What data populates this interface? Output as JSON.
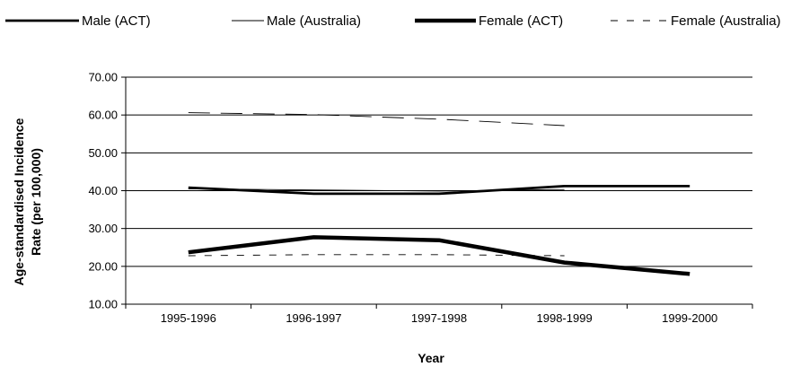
{
  "chart_data": {
    "type": "line",
    "title": "",
    "xlabel": "Year",
    "ylabel_line1": "Age-standardised Incidence",
    "ylabel_line2": "Rate (per 100,000)",
    "categories": [
      "1995-1996",
      "1996-1997",
      "1997-1998",
      "1998-1999",
      "1999-2000"
    ],
    "ylim": [
      10,
      70
    ],
    "yticks": [
      "10.00",
      "20.00",
      "30.00",
      "40.00",
      "50.00",
      "60.00",
      "70.00"
    ],
    "grid": true,
    "legend_position": "top",
    "series": [
      {
        "name": "Male (ACT)",
        "style": "solid-medium",
        "values": [
          40.8,
          39.2,
          39.2,
          41.2,
          41.2
        ]
      },
      {
        "name": "Male (Australia)",
        "style": "solid-thin",
        "values": [
          40.5,
          40.2,
          39.9,
          40.3,
          null
        ]
      },
      {
        "name": "Female (ACT)",
        "style": "solid-thick",
        "values": [
          23.7,
          27.7,
          26.9,
          21.0,
          18.0
        ]
      },
      {
        "name": "Female (Australia)",
        "style": "dashed-thin",
        "values": [
          22.8,
          23.1,
          23.1,
          22.8,
          null
        ]
      },
      {
        "name": "",
        "style": "long-dash-thin",
        "values": [
          60.6,
          60.1,
          58.9,
          57.2,
          null
        ]
      }
    ],
    "colors": {
      "line": "#000000",
      "grid": "#000000",
      "background": "#ffffff"
    }
  }
}
